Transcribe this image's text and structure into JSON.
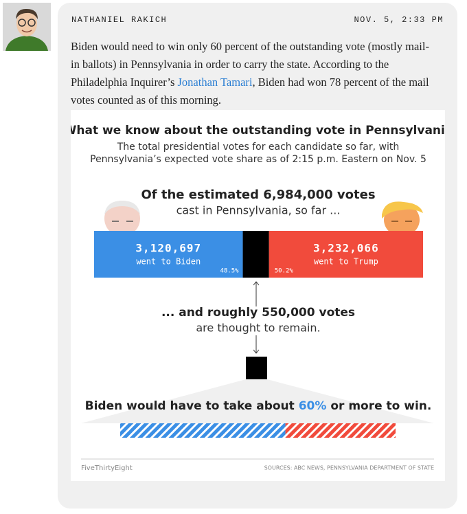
{
  "post": {
    "author": "NATHANIEL RAKICH",
    "timestamp": "NOV. 5, 2:33 PM",
    "body": {
      "before": "Biden would need to win only 60 percent of the outstanding vote (mostly mail-in ballots) in Pennsylvania in order to carry the state. According to the Philadelphia Inquirer’s ",
      "link": "Jonathan Tamari",
      "after": ", Biden had won 78 percent of the mail votes counted as of this morning."
    }
  },
  "graphic": {
    "title": "What we know about the outstanding vote in Pennsylvania",
    "subtitle": [
      "The total presidential votes for each candidate so far, with",
      "Pennsylvania’s expected vote share as of 2:15 p.m. Eastern on Nov. 5"
    ],
    "headline": {
      "bold": "Of the estimated 6,984,000 votes",
      "rest": "cast in Pennsylvania, so far ..."
    },
    "segments": [
      {
        "value": 3120697,
        "label": "3,120,697",
        "caption": "went to Biden",
        "share": "48.5%",
        "color": "#3b8fe5"
      },
      {
        "value": 550000,
        "color": "#000000"
      },
      {
        "value": 3232066,
        "label": "3,232,066",
        "caption": "went to Trump",
        "share": "50.2%",
        "color": "#f14b3c"
      }
    ],
    "remaining": {
      "bold": "... and roughly 550,000 votes",
      "rest": "are thought to remain."
    },
    "needed": {
      "before": "Biden would have to take about ",
      "value": 60,
      "label": "60%",
      "after": " or more to win."
    },
    "credit": "FiveThirtyEight",
    "sources": "SOURCES: ABC NEWS, PENNSYLVANIA DEPARTMENT OF STATE"
  }
}
